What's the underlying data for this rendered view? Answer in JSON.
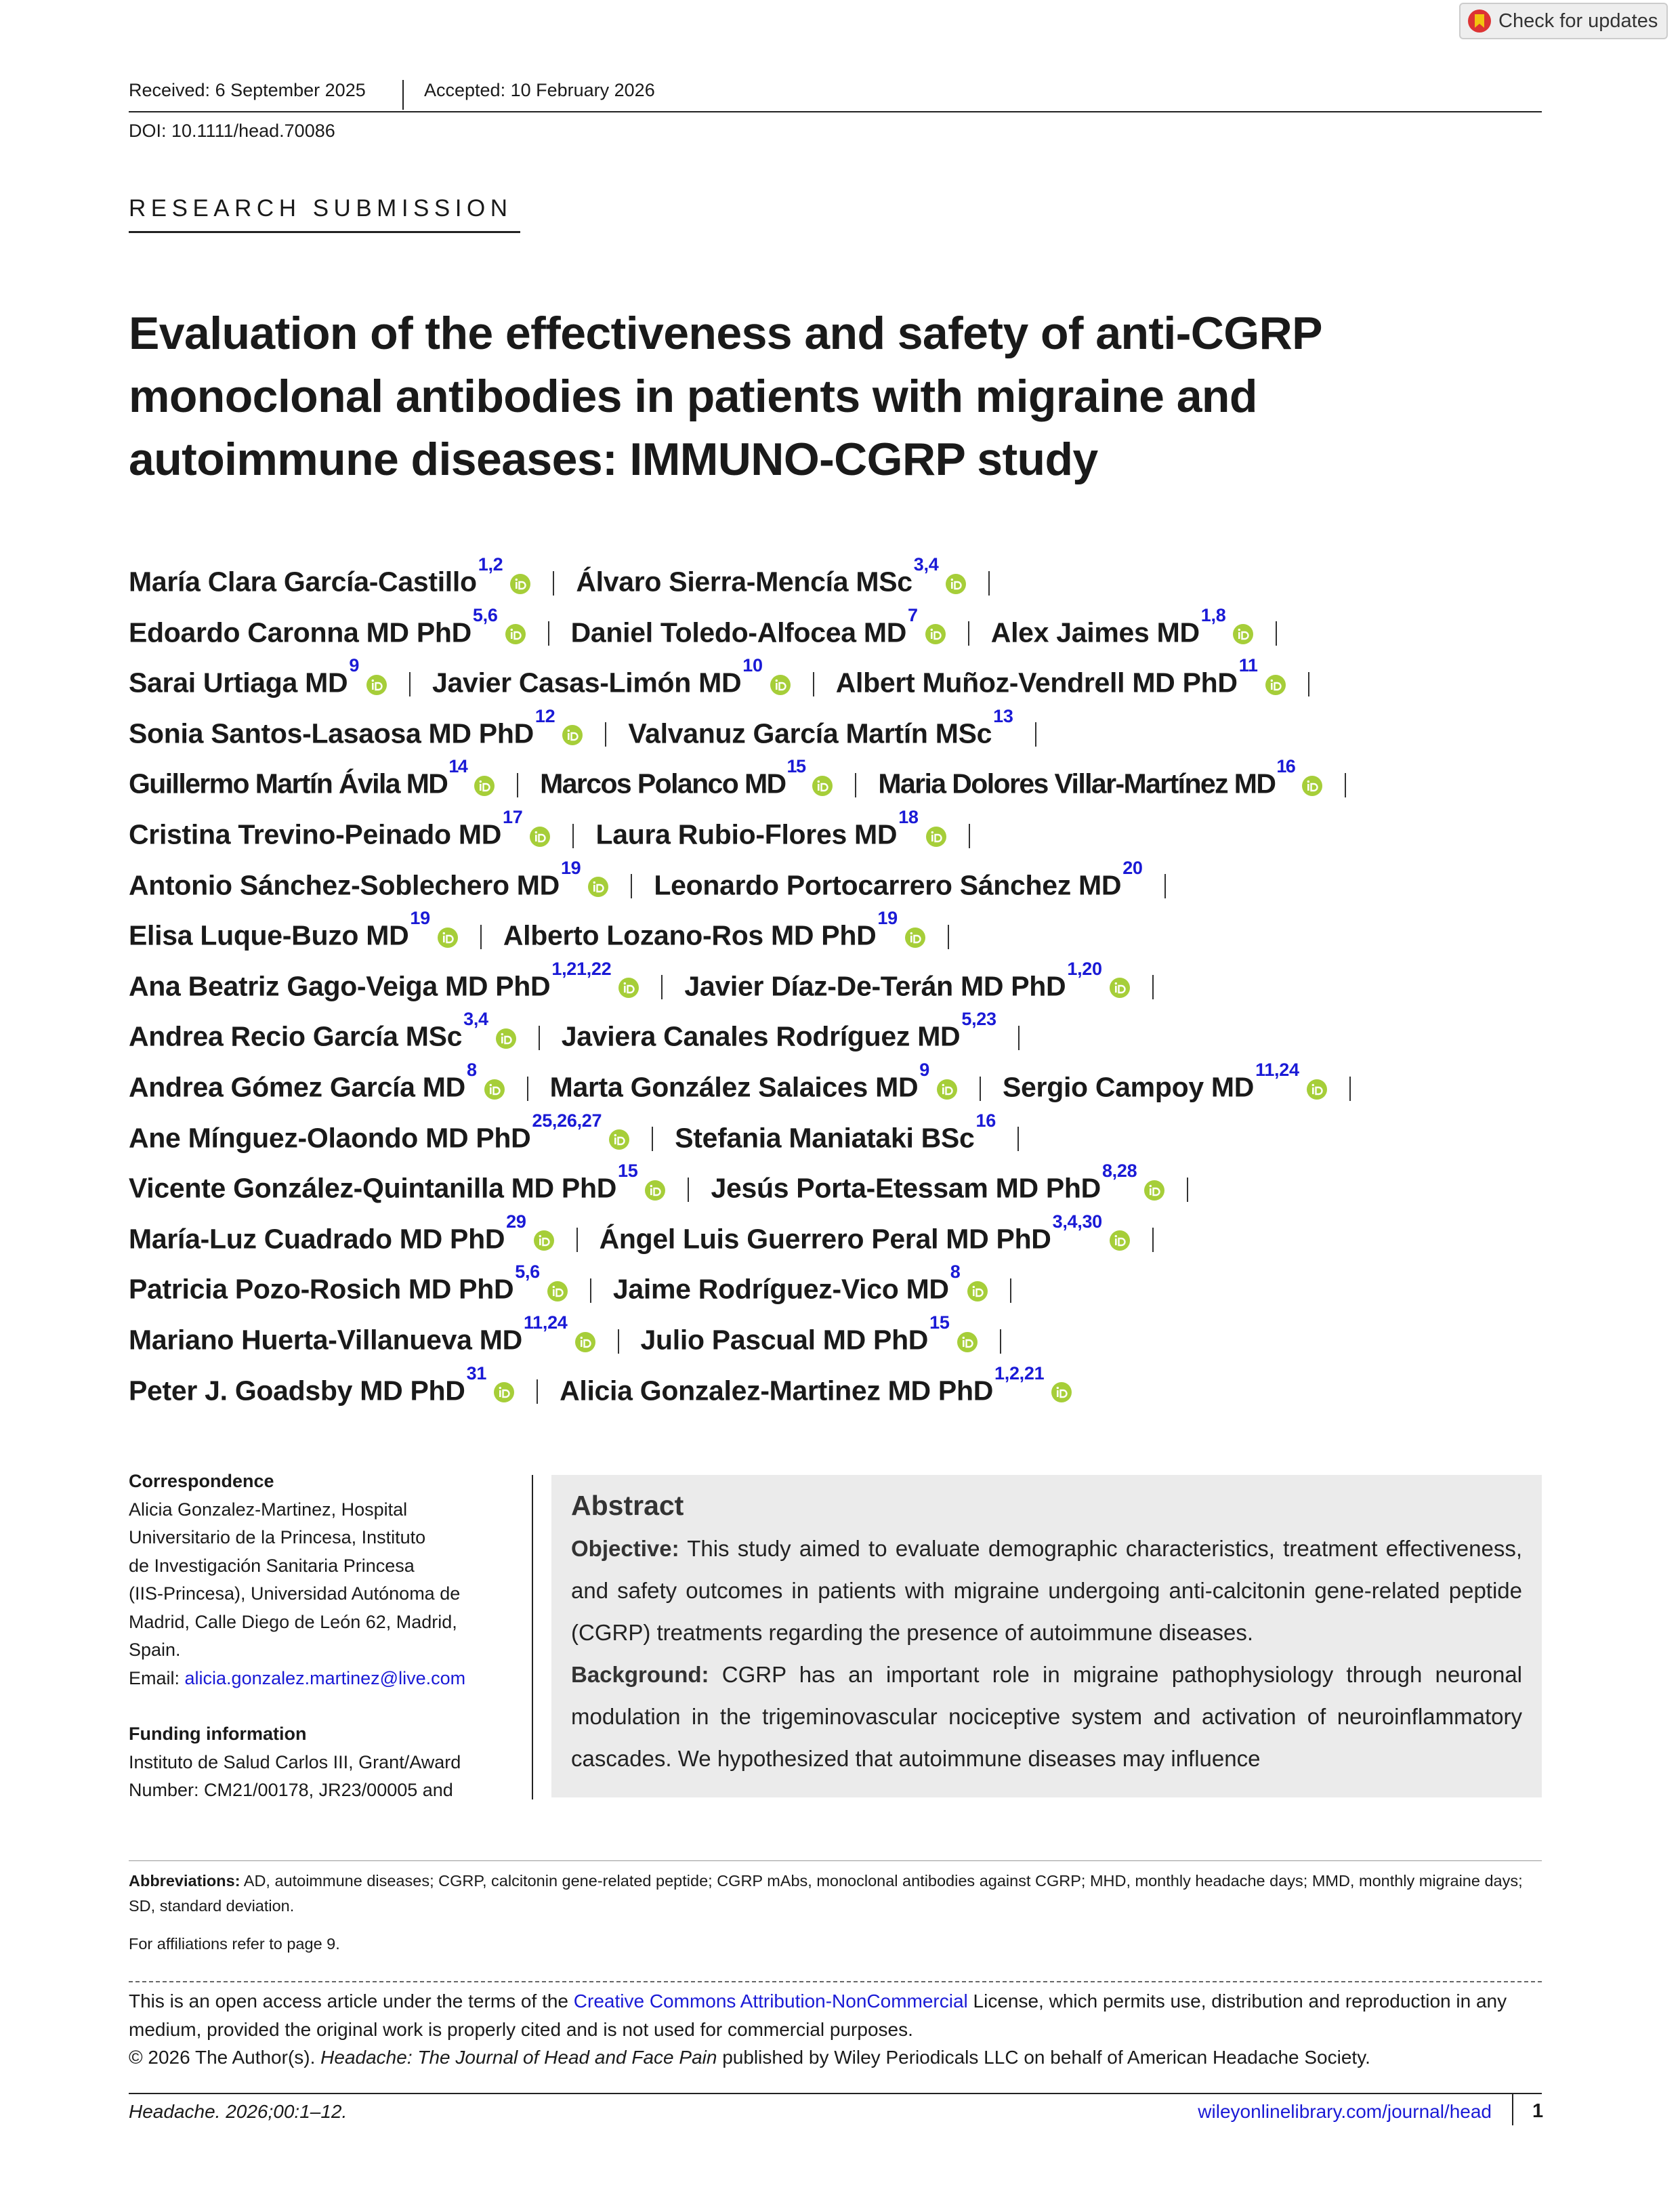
{
  "header": {
    "received": "Received: 6 September 2025",
    "accepted": "Accepted: 10 February 2026",
    "doi": "DOI: 10.1111/head.70086",
    "check_updates": "Check for updates",
    "section": "RESEARCH SUBMISSION"
  },
  "title_lines": [
    "Evaluation of the effectiveness and safety of anti-CGRP",
    "monoclonal antibodies in patients with migraine and",
    "autoimmune diseases: IMMUNO-CGRP study"
  ],
  "author_lines": [
    [
      {
        "name": "María Clara García-Castillo",
        "aff": "1,2"
      },
      {
        "name": "Álvaro Sierra-Mencía MSc",
        "aff": "3,4"
      }
    ],
    [
      {
        "name": "Edoardo Caronna MD PhD",
        "aff": "5,6"
      },
      {
        "name": "Daniel Toledo-Alfocea MD",
        "aff": "7"
      },
      {
        "name": "Alex Jaimes MD",
        "aff": "1,8"
      }
    ],
    [
      {
        "name": "Sarai Urtiaga MD",
        "aff": "9"
      },
      {
        "name": "Javier Casas-Limón MD",
        "aff": "10"
      },
      {
        "name": "Albert Muñoz-Vendrell MD PhD",
        "aff": "11"
      }
    ],
    [
      {
        "name": "Sonia Santos-Lasaosa MD PhD",
        "aff": "12"
      },
      {
        "name": "Valvanuz García Martín MSc",
        "aff": "13"
      }
    ],
    [
      {
        "name": "Guillermo Martín Ávila MD",
        "aff": "14"
      },
      {
        "name": "Marcos Polanco MD",
        "aff": "15"
      },
      {
        "name": "Maria Dolores Villar-Martínez MD",
        "aff": "16"
      }
    ],
    [
      {
        "name": "Cristina Trevino-Peinado MD",
        "aff": "17"
      },
      {
        "name": "Laura Rubio-Flores MD",
        "aff": "18"
      }
    ],
    [
      {
        "name": "Antonio Sánchez-Soblechero MD",
        "aff": "19"
      },
      {
        "name": "Leonardo Portocarrero Sánchez MD",
        "aff": "20"
      }
    ],
    [
      {
        "name": "Elisa Luque-Buzo MD",
        "aff": "19"
      },
      {
        "name": "Alberto Lozano-Ros MD PhD",
        "aff": "19"
      }
    ],
    [
      {
        "name": "Ana Beatriz Gago-Veiga MD PhD",
        "aff": "1,21,22"
      },
      {
        "name": "Javier Díaz-De-Terán MD PhD",
        "aff": "1,20"
      }
    ],
    [
      {
        "name": "Andrea Recio García MSc",
        "aff": "3,4"
      },
      {
        "name": "Javiera Canales Rodríguez MD",
        "aff": "5,23"
      }
    ],
    [
      {
        "name": "Andrea Gómez García MD",
        "aff": "8"
      },
      {
        "name": "Marta González Salaices MD",
        "aff": "9"
      },
      {
        "name": "Sergio Campoy MD",
        "aff": "11,24"
      }
    ],
    [
      {
        "name": "Ane Mínguez-Olaondo MD PhD",
        "aff": "25,26,27"
      },
      {
        "name": "Stefania Maniataki BSc",
        "aff": "16"
      }
    ],
    [
      {
        "name": "Vicente González-Quintanilla MD PhD",
        "aff": "15"
      },
      {
        "name": "Jesús Porta-Etessam MD PhD",
        "aff": "8,28"
      }
    ],
    [
      {
        "name": "María-Luz Cuadrado MD PhD",
        "aff": "29"
      },
      {
        "name": "Ángel Luis Guerrero Peral MD PhD",
        "aff": "3,4,30"
      }
    ],
    [
      {
        "name": "Patricia Pozo-Rosich MD PhD",
        "aff": "5,6"
      },
      {
        "name": "Jaime Rodríguez-Vico MD",
        "aff": "8"
      }
    ],
    [
      {
        "name": "Mariano Huerta-Villanueva MD",
        "aff": "11,24"
      },
      {
        "name": "Julio Pascual MD PhD",
        "aff": "15"
      }
    ],
    [
      {
        "name": "Peter J. Goadsby MD PhD",
        "aff": "31"
      },
      {
        "name": "Alicia Gonzalez-Martinez MD PhD",
        "aff": "1,2,21"
      }
    ]
  ],
  "correspondence": {
    "heading": "Correspondence",
    "lines": [
      "Alicia Gonzalez-Martinez, Hospital",
      "Universitario de la Princesa, Instituto",
      "de Investigación Sanitaria Princesa",
      "(IIS-Princesa), Universidad Autónoma de",
      "Madrid, Calle Diego de León 62, Madrid,",
      "Spain."
    ],
    "email_label": "Email:",
    "email": "alicia.gonzalez.martinez@live.com"
  },
  "funding": {
    "heading": "Funding information",
    "lines": [
      "Instituto de Salud Carlos III, Grant/Award",
      "Number: CM21/00178, JR23/00005 and"
    ]
  },
  "abstract": {
    "heading": "Abstract",
    "paragraphs": [
      {
        "label": "Objective:",
        "text": "This study aimed to evaluate demographic characteristics, treatment effectiveness, and safety outcomes in patients with migraine undergoing anti-calcitonin gene-related peptide (CGRP) treatments regarding the presence of autoimmune diseases."
      },
      {
        "label": "Background:",
        "text": "CGRP has an important role in migraine pathophysiology through neuronal modulation in the trigeminovascular nociceptive system and activation of neuroinflammatory cascades. We hypothesized that autoimmune diseases may influence"
      }
    ]
  },
  "abbreviations": {
    "label": "Abbreviations:",
    "text": "AD, autoimmune diseases; CGRP, calcitonin gene-related peptide; CGRP mAbs, monoclonal antibodies against CGRP; MHD, monthly headache days; MMD, monthly migraine days; SD, standard deviation."
  },
  "affiliations_note": "For affiliations refer to page 9.",
  "license": [
    {
      "text": "This is an open access article under the terms of the ",
      "style": "plain"
    },
    {
      "text": "Creative Commons Attribution-NonCommercial",
      "style": "link"
    },
    {
      "text": " License, which permits use, distribution and reproduction in any medium, provided the original work is properly cited and is not used for commercial purposes.",
      "style": "plain"
    },
    {
      "text": "© 2026 The Author(s). ",
      "style": "break"
    },
    {
      "text": "Headache: The Journal of Head and Face Pain",
      "style": "italic"
    },
    {
      "text": " published by Wiley Periodicals LLC on behalf of American Headache Society.",
      "style": "plain"
    }
  ],
  "footer": {
    "citation": "Headache. 2026;00:1–12.",
    "url": "wileyonlinelibrary.com/journal/head",
    "page": "1"
  }
}
